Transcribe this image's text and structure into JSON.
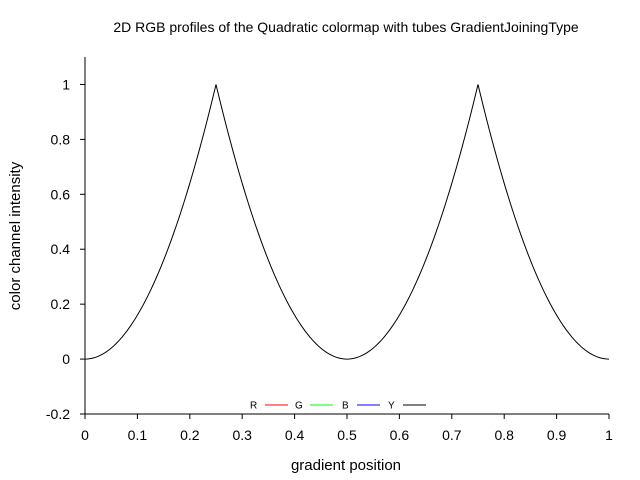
{
  "chart_data": {
    "type": "line",
    "title": "2D RGB profiles of the Quadratic colormap with tubes GradientJoiningType",
    "xlabel": "gradient position",
    "ylabel": "color channel intensity",
    "xlim": [
      0,
      1
    ],
    "ylim": [
      -0.2,
      1.1
    ],
    "xticks": [
      "0",
      "0.1",
      "0.2",
      "0.3",
      "0.4",
      "0.5",
      "0.6",
      "0.7",
      "0.8",
      "0.9",
      "1"
    ],
    "yticks": [
      "-0.2",
      "0",
      "0.2",
      "0.4",
      "0.6",
      "0.8",
      "1"
    ],
    "grid": false,
    "legend_position": "bottom-center",
    "series": [
      {
        "name": "R",
        "color": "#ff0000",
        "x": [],
        "y": []
      },
      {
        "name": "G",
        "color": "#00ff00",
        "x": [],
        "y": []
      },
      {
        "name": "B",
        "color": "#0000ff",
        "x": [],
        "y": []
      },
      {
        "name": "Y",
        "color": "#000000",
        "x": [
          0,
          0.05,
          0.1,
          0.15,
          0.2,
          0.25,
          0.3,
          0.35,
          0.4,
          0.45,
          0.5,
          0.55,
          0.6,
          0.65,
          0.7,
          0.75,
          0.8,
          0.85,
          0.9,
          0.95,
          1
        ],
        "y": [
          0,
          0.04,
          0.16,
          0.36,
          0.64,
          1,
          0.64,
          0.36,
          0.16,
          0.04,
          0,
          0.04,
          0.16,
          0.36,
          0.64,
          1,
          0.64,
          0.36,
          0.16,
          0.04,
          0
        ]
      }
    ]
  }
}
